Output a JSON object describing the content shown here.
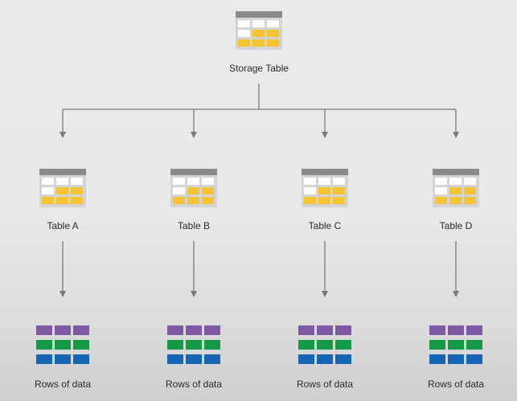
{
  "root": {
    "label": "Storage Table",
    "icon": "table-icon"
  },
  "tables": [
    {
      "label": "Table A",
      "icon": "table-icon"
    },
    {
      "label": "Table B",
      "icon": "table-icon"
    },
    {
      "label": "Table C",
      "icon": "table-icon"
    },
    {
      "label": "Table D",
      "icon": "table-icon"
    }
  ],
  "rows": [
    {
      "label": "Rows of data",
      "icon": "rows-of-data-icon"
    },
    {
      "label": "Rows of data",
      "icon": "rows-of-data-icon"
    },
    {
      "label": "Rows of data",
      "icon": "rows-of-data-icon"
    },
    {
      "label": "Rows of data",
      "icon": "rows-of-data-icon"
    }
  ],
  "colors": {
    "table_header": "#888888",
    "table_cell_white": "#ffffff",
    "table_cell_yellow": "#f6c333",
    "table_frame": "#cfcfcf",
    "connector": "#7a7a7a",
    "row_purple": "#7e5aa3",
    "row_green": "#129a46",
    "row_blue": "#1566b5"
  }
}
